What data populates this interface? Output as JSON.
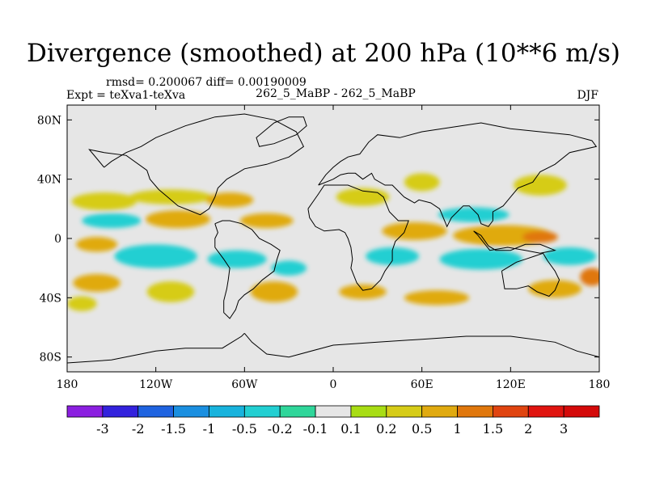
{
  "chart_data": {
    "type": "heatmap",
    "title": "Divergence (smoothed) at 200 hPa (10**6 m/s)",
    "stats_line": "rmsd= 0.200067 diff= 0.00190009",
    "left_label": "Expt = teXva1-teXva",
    "center_label": "262_5_MaBP - 262_5_MaBP",
    "right_label": "DJF",
    "x_range": [
      -180,
      180
    ],
    "y_range": [
      -90,
      90
    ],
    "x_ticks": [
      {
        "value": -180,
        "label": "180"
      },
      {
        "value": -120,
        "label": "120W"
      },
      {
        "value": -60,
        "label": "60W"
      },
      {
        "value": 0,
        "label": "0"
      },
      {
        "value": 60,
        "label": "60E"
      },
      {
        "value": 120,
        "label": "120E"
      },
      {
        "value": 180,
        "label": "180"
      }
    ],
    "y_ticks": [
      {
        "value": 80,
        "label": "80N"
      },
      {
        "value": 40,
        "label": "40N"
      },
      {
        "value": 0,
        "label": "0"
      },
      {
        "value": -40,
        "label": "40S"
      },
      {
        "value": -80,
        "label": "80S"
      }
    ],
    "colorbar": {
      "levels": [
        "-3",
        "-2",
        "-1.5",
        "-1",
        "-0.5",
        "-0.2",
        "-0.1",
        "0.1",
        "0.2",
        "0.5",
        "1",
        "1.5",
        "2",
        "3"
      ],
      "colors": [
        "#8b1fe0",
        "#3322dd",
        "#1f63e0",
        "#1a8fe0",
        "#18b3dd",
        "#22cfd2",
        "#2fd69a",
        "#e6e6e6",
        "#a8dd14",
        "#d6cc18",
        "#e0aa10",
        "#e0770c",
        "#e04410",
        "#e0140f",
        "#d40a0a"
      ]
    },
    "field_blobs": [
      {
        "lon": -155,
        "lat": 25,
        "rlon": 22,
        "rlat": 6,
        "value": 0.2
      },
      {
        "lon": -110,
        "lat": 28,
        "rlon": 28,
        "rlat": 5,
        "value": 0.2
      },
      {
        "lon": -70,
        "lat": 26,
        "rlon": 16,
        "rlat": 5,
        "value": 0.5
      },
      {
        "lon": -150,
        "lat": 12,
        "rlon": 20,
        "rlat": 5,
        "value": -0.5
      },
      {
        "lon": -105,
        "lat": 13,
        "rlon": 22,
        "rlat": 6,
        "value": 0.5
      },
      {
        "lon": -45,
        "lat": 12,
        "rlon": 18,
        "rlat": 5,
        "value": 0.5
      },
      {
        "lon": -160,
        "lat": -4,
        "rlon": 14,
        "rlat": 5,
        "value": 0.5
      },
      {
        "lon": -120,
        "lat": -12,
        "rlon": 28,
        "rlat": 8,
        "value": -0.5
      },
      {
        "lon": -65,
        "lat": -14,
        "rlon": 20,
        "rlat": 6,
        "value": -0.5
      },
      {
        "lon": -30,
        "lat": -20,
        "rlon": 12,
        "rlat": 5,
        "value": -0.5
      },
      {
        "lon": -160,
        "lat": -30,
        "rlon": 16,
        "rlat": 6,
        "value": 0.5
      },
      {
        "lon": -110,
        "lat": -36,
        "rlon": 16,
        "rlat": 7,
        "value": 0.2
      },
      {
        "lon": -40,
        "lat": -36,
        "rlon": 16,
        "rlat": 7,
        "value": 0.5
      },
      {
        "lon": -170,
        "lat": -44,
        "rlon": 10,
        "rlat": 5,
        "value": 0.2
      },
      {
        "lon": 20,
        "lat": 28,
        "rlon": 18,
        "rlat": 6,
        "value": 0.2
      },
      {
        "lon": 60,
        "lat": 38,
        "rlon": 12,
        "rlat": 6,
        "value": 0.2
      },
      {
        "lon": 140,
        "lat": 36,
        "rlon": 18,
        "rlat": 7,
        "value": 0.2
      },
      {
        "lon": 95,
        "lat": 16,
        "rlon": 24,
        "rlat": 5,
        "value": -0.5
      },
      {
        "lon": 55,
        "lat": 5,
        "rlon": 22,
        "rlat": 6,
        "value": 0.5
      },
      {
        "lon": 115,
        "lat": 2,
        "rlon": 34,
        "rlat": 7,
        "value": 0.5
      },
      {
        "lon": 140,
        "lat": 1,
        "rlon": 12,
        "rlat": 4,
        "value": 1
      },
      {
        "lon": 40,
        "lat": -12,
        "rlon": 18,
        "rlat": 6,
        "value": -0.5
      },
      {
        "lon": 100,
        "lat": -14,
        "rlon": 28,
        "rlat": 7,
        "value": -0.5
      },
      {
        "lon": 160,
        "lat": -12,
        "rlon": 18,
        "rlat": 6,
        "value": -0.5
      },
      {
        "lon": 20,
        "lat": -36,
        "rlon": 16,
        "rlat": 5,
        "value": 0.5
      },
      {
        "lon": 70,
        "lat": -40,
        "rlon": 22,
        "rlat": 5,
        "value": 0.5
      },
      {
        "lon": 150,
        "lat": -34,
        "rlon": 18,
        "rlat": 6,
        "value": 0.5
      },
      {
        "lon": 175,
        "lat": -26,
        "rlon": 8,
        "rlat": 6,
        "value": 1
      }
    ],
    "coastlines": [
      [
        [
          -155,
          48
        ],
        [
          -150,
          52
        ],
        [
          -140,
          58
        ],
        [
          -130,
          62
        ],
        [
          -120,
          68
        ],
        [
          -100,
          76
        ],
        [
          -80,
          82
        ],
        [
          -60,
          84
        ],
        [
          -40,
          80
        ],
        [
          -25,
          72
        ],
        [
          -20,
          62
        ],
        [
          -30,
          55
        ],
        [
          -45,
          50
        ],
        [
          -60,
          47
        ],
        [
          -65,
          44
        ],
        [
          -72,
          40
        ],
        [
          -78,
          34
        ],
        [
          -80,
          28
        ],
        [
          -82,
          24
        ],
        [
          -84,
          20
        ],
        [
          -90,
          16
        ],
        [
          -95,
          18
        ],
        [
          -105,
          22
        ],
        [
          -112,
          28
        ],
        [
          -118,
          33
        ],
        [
          -124,
          40
        ],
        [
          -126,
          46
        ],
        [
          -140,
          56
        ],
        [
          -155,
          58
        ],
        [
          -165,
          60
        ],
        [
          -160,
          54
        ],
        [
          -155,
          48
        ]
      ],
      [
        [
          -80,
          10
        ],
        [
          -75,
          12
        ],
        [
          -70,
          12
        ],
        [
          -62,
          10
        ],
        [
          -55,
          6
        ],
        [
          -50,
          0
        ],
        [
          -42,
          -4
        ],
        [
          -36,
          -8
        ],
        [
          -38,
          -14
        ],
        [
          -40,
          -22
        ],
        [
          -48,
          -28
        ],
        [
          -54,
          -34
        ],
        [
          -60,
          -38
        ],
        [
          -64,
          -42
        ],
        [
          -66,
          -48
        ],
        [
          -70,
          -54
        ],
        [
          -74,
          -50
        ],
        [
          -74,
          -42
        ],
        [
          -72,
          -34
        ],
        [
          -71,
          -28
        ],
        [
          -70,
          -20
        ],
        [
          -74,
          -14
        ],
        [
          -80,
          -6
        ],
        [
          -80,
          0
        ],
        [
          -78,
          4
        ],
        [
          -80,
          10
        ]
      ],
      [
        [
          -17,
          20
        ],
        [
          -16,
          14
        ],
        [
          -12,
          8
        ],
        [
          -6,
          5
        ],
        [
          4,
          6
        ],
        [
          8,
          4
        ],
        [
          10,
          0
        ],
        [
          12,
          -6
        ],
        [
          13,
          -14
        ],
        [
          12,
          -20
        ],
        [
          16,
          -30
        ],
        [
          20,
          -35
        ],
        [
          26,
          -34
        ],
        [
          32,
          -28
        ],
        [
          35,
          -22
        ],
        [
          40,
          -15
        ],
        [
          40,
          -8
        ],
        [
          42,
          -2
        ],
        [
          48,
          4
        ],
        [
          51,
          12
        ],
        [
          44,
          12
        ],
        [
          38,
          18
        ],
        [
          34,
          28
        ],
        [
          30,
          31
        ],
        [
          20,
          32
        ],
        [
          10,
          36
        ],
        [
          0,
          36
        ],
        [
          -6,
          36
        ],
        [
          -10,
          30
        ],
        [
          -17,
          20
        ]
      ],
      [
        [
          -10,
          36
        ],
        [
          -5,
          43
        ],
        [
          0,
          48
        ],
        [
          5,
          52
        ],
        [
          10,
          55
        ],
        [
          18,
          57
        ],
        [
          24,
          65
        ],
        [
          30,
          70
        ],
        [
          45,
          68
        ],
        [
          60,
          72
        ],
        [
          80,
          75
        ],
        [
          100,
          78
        ],
        [
          120,
          74
        ],
        [
          140,
          72
        ],
        [
          160,
          70
        ],
        [
          175,
          66
        ],
        [
          178,
          62
        ],
        [
          160,
          58
        ],
        [
          150,
          50
        ],
        [
          140,
          45
        ],
        [
          135,
          38
        ],
        [
          125,
          34
        ],
        [
          120,
          28
        ],
        [
          115,
          22
        ],
        [
          108,
          18
        ],
        [
          108,
          12
        ],
        [
          105,
          8
        ],
        [
          100,
          10
        ],
        [
          98,
          16
        ],
        [
          92,
          22
        ],
        [
          88,
          22
        ],
        [
          80,
          14
        ],
        [
          77,
          8
        ],
        [
          72,
          20
        ],
        [
          66,
          24
        ],
        [
          58,
          26
        ],
        [
          55,
          24
        ],
        [
          48,
          28
        ],
        [
          40,
          36
        ],
        [
          35,
          36
        ],
        [
          28,
          40
        ],
        [
          26,
          44
        ],
        [
          20,
          40
        ],
        [
          15,
          44
        ],
        [
          10,
          44
        ],
        [
          5,
          43
        ],
        [
          0,
          40
        ],
        [
          -10,
          36
        ]
      ],
      [
        [
          114,
          -22
        ],
        [
          116,
          -34
        ],
        [
          124,
          -34
        ],
        [
          132,
          -32
        ],
        [
          138,
          -36
        ],
        [
          146,
          -39
        ],
        [
          150,
          -35
        ],
        [
          153,
          -28
        ],
        [
          150,
          -22
        ],
        [
          145,
          -15
        ],
        [
          142,
          -10
        ],
        [
          136,
          -12
        ],
        [
          130,
          -14
        ],
        [
          124,
          -16
        ],
        [
          114,
          -22
        ]
      ],
      [
        [
          95,
          5
        ],
        [
          100,
          2
        ],
        [
          105,
          -5
        ],
        [
          110,
          -8
        ],
        [
          120,
          -8
        ],
        [
          130,
          -4
        ],
        [
          140,
          -4
        ],
        [
          150,
          -8
        ],
        [
          140,
          -10
        ],
        [
          130,
          -8
        ],
        [
          118,
          -6
        ],
        [
          106,
          -8
        ],
        [
          98,
          2
        ],
        [
          95,
          5
        ]
      ],
      [
        [
          -60,
          -64
        ],
        [
          -55,
          -70
        ],
        [
          -45,
          -78
        ],
        [
          -30,
          -80
        ],
        [
          0,
          -72
        ],
        [
          30,
          -70
        ],
        [
          60,
          -68
        ],
        [
          90,
          -66
        ],
        [
          120,
          -66
        ],
        [
          150,
          -70
        ],
        [
          165,
          -76
        ],
        [
          180,
          -80
        ]
      ],
      [
        [
          -180,
          -84
        ],
        [
          -150,
          -82
        ],
        [
          -120,
          -76
        ],
        [
          -100,
          -74
        ],
        [
          -75,
          -74
        ],
        [
          -62,
          -66
        ],
        [
          -60,
          -64
        ]
      ],
      [
        [
          -40,
          78
        ],
        [
          -30,
          82
        ],
        [
          -20,
          82
        ],
        [
          -18,
          76
        ],
        [
          -25,
          70
        ],
        [
          -40,
          64
        ],
        [
          -50,
          62
        ],
        [
          -52,
          68
        ],
        [
          -40,
          78
        ]
      ]
    ]
  }
}
